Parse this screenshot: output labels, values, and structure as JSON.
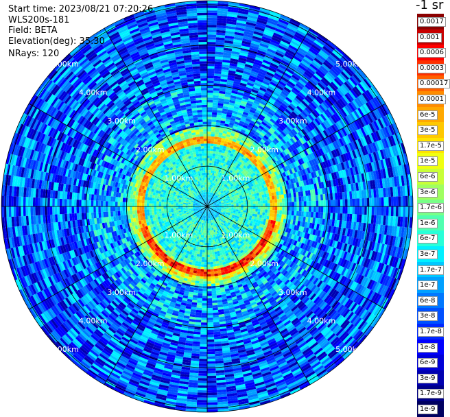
{
  "header": {
    "start_time": "Start time: 2023/08/21 07:20:26",
    "instrument": "WLS200s-181",
    "field": "Field: BETA",
    "elevation": "Elevation(deg): 35.30",
    "nrays": "NRays: 120"
  },
  "colorbar": {
    "unit": "-1 sr",
    "ticks": [
      "0.0017",
      "0.001",
      "0.0006",
      "0.0003",
      "0.00017",
      "0.0001",
      "6e-5",
      "3e-5",
      "1.7e-5",
      "1e-5",
      "6e-6",
      "3e-6",
      "1.7e-6",
      "1e-6",
      "6e-7",
      "3e-7",
      "1.7e-7",
      "1e-7",
      "6e-8",
      "3e-8",
      "1.7e-8",
      "1e-8",
      "6e-9",
      "3e-9",
      "1.7e-9",
      "1e-9"
    ],
    "colors": [
      "#8b0000",
      "#c80000",
      "#ff0000",
      "#ff3000",
      "#ff6000",
      "#ff8c00",
      "#ffa800",
      "#ffc800",
      "#ffe400",
      "#f0ff10",
      "#c8ff38",
      "#a0ff60",
      "#78ff88",
      "#50ffb0",
      "#28ffd8",
      "#00f0ff",
      "#00c8ff",
      "#00a0ff",
      "#0078ff",
      "#0050ff",
      "#0028ff",
      "#0000ff",
      "#0000d8",
      "#0000b0",
      "#000088",
      "#000060"
    ]
  },
  "chart_data": {
    "type": "heatmap",
    "subtype": "polar-ppi",
    "field": "BETA",
    "elevation_deg": 35.3,
    "n_rays": 120,
    "ring_labels": [
      "1.00km",
      "2.00km",
      "3.00km",
      "4.00km",
      "5.00km"
    ],
    "ring_values_km": [
      1,
      2,
      3,
      4,
      5
    ],
    "max_range_km": 5.1,
    "spokes_deg": [
      0,
      30,
      60,
      90,
      120,
      150,
      180,
      210,
      240,
      270,
      300,
      330
    ]
  }
}
